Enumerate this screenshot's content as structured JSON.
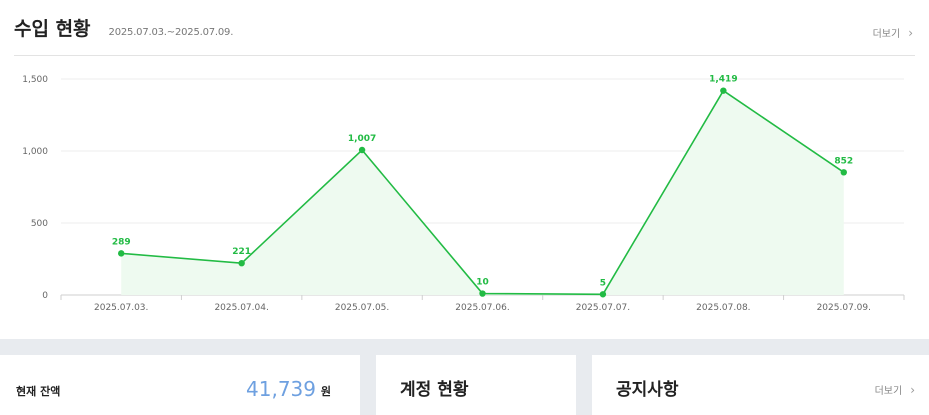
{
  "header": {
    "title": "수입 현황",
    "period": "2025.07.03.~2025.07.09.",
    "more_label": "더보기"
  },
  "chart_data": {
    "type": "area",
    "categories": [
      "2025.07.03.",
      "2025.07.04.",
      "2025.07.05.",
      "2025.07.06.",
      "2025.07.07.",
      "2025.07.08.",
      "2025.07.09."
    ],
    "values": [
      289,
      221,
      1007,
      10,
      5,
      1419,
      852
    ],
    "data_labels": [
      "289",
      "221",
      "1,007",
      "10",
      "5",
      "1,419",
      "852"
    ],
    "y_ticks": [
      0,
      500,
      1000,
      1500
    ],
    "y_tick_labels": [
      "0",
      "500",
      "1,000",
      "1,500"
    ],
    "ylim": [
      0,
      1500
    ],
    "grid": true,
    "line_color": "#22bb44",
    "fill_color": "#eefaf0"
  },
  "balance": {
    "label": "현재 잔액",
    "value": "41,739",
    "unit": "원"
  },
  "account": {
    "title": "계정 현황"
  },
  "notice": {
    "title": "공지사항",
    "more_label": "더보기"
  }
}
